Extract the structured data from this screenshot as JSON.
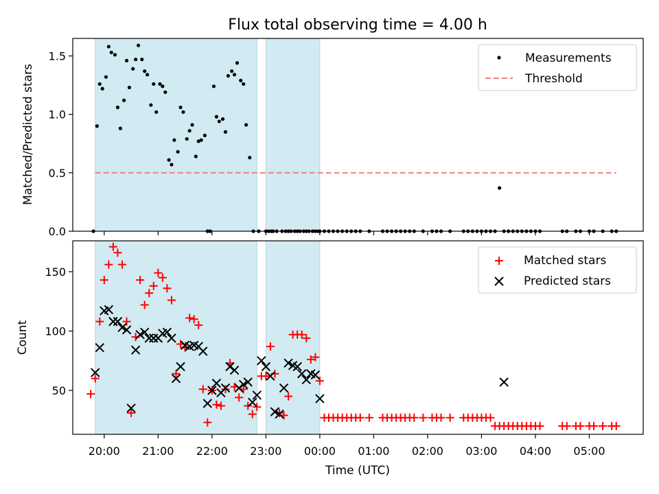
{
  "chart_data": [
    {
      "type": "scatter",
      "title": "Flux total observing time = 4.00 h",
      "ylabel": "Matched/Predicted stars",
      "xlabel": "",
      "ylim": [
        0,
        1.65
      ],
      "yticks": [
        0.0,
        0.5,
        1.0,
        1.5
      ],
      "ytick_labels": [
        "0.0",
        "0.5",
        "1.0",
        "1.5"
      ],
      "grid": false,
      "legend_position": "top-right",
      "legend": [
        "Measurements",
        "Threshold"
      ],
      "threshold": {
        "name": "Threshold",
        "value": 0.5,
        "x_range": [
          "19:50",
          "05:30"
        ]
      },
      "observing_windows": [
        [
          "19:50",
          "22:50"
        ],
        [
          "23:00",
          "00:00"
        ]
      ],
      "series": [
        {
          "name": "Measurements",
          "marker": "dot",
          "x": [
            "19:48",
            "19:52",
            "19:55",
            "19:58",
            "20:02",
            "20:05",
            "20:08",
            "20:12",
            "20:15",
            "20:18",
            "20:22",
            "20:25",
            "20:28",
            "20:32",
            "20:35",
            "20:38",
            "20:42",
            "20:45",
            "20:48",
            "20:52",
            "20:55",
            "20:58",
            "21:02",
            "21:05",
            "21:08",
            "21:12",
            "21:15",
            "21:18",
            "21:22",
            "21:25",
            "21:28",
            "21:32",
            "21:35",
            "21:38",
            "21:42",
            "21:45",
            "21:48",
            "21:52",
            "21:55",
            "21:58",
            "22:02",
            "22:05",
            "22:08",
            "22:12",
            "22:15",
            "22:18",
            "22:22",
            "22:25",
            "22:28",
            "22:32",
            "22:35",
            "22:38",
            "22:42",
            "22:46",
            "22:52",
            "23:00",
            "23:03",
            "23:06",
            "23:08",
            "23:12",
            "23:18",
            "23:22",
            "23:25",
            "23:28",
            "23:32",
            "23:35",
            "23:38",
            "23:42",
            "23:45",
            "23:48",
            "23:52",
            "23:55",
            "23:58",
            "00:00",
            "00:05",
            "00:10",
            "00:15",
            "00:20",
            "00:25",
            "00:30",
            "00:35",
            "00:40",
            "00:45",
            "00:55",
            "01:10",
            "01:15",
            "01:20",
            "01:25",
            "01:30",
            "01:35",
            "01:40",
            "01:45",
            "01:55",
            "02:05",
            "02:10",
            "02:15",
            "02:25",
            "02:40",
            "02:45",
            "02:50",
            "02:55",
            "03:00",
            "03:05",
            "03:10",
            "03:15",
            "03:20",
            "03:25",
            "03:30",
            "03:35",
            "03:40",
            "03:45",
            "03:50",
            "03:55",
            "04:00",
            "04:05",
            "04:30",
            "04:35",
            "04:45",
            "04:50",
            "05:00",
            "05:05",
            "05:15",
            "05:25",
            "05:30"
          ],
          "values": [
            0.0,
            0.9,
            1.26,
            1.22,
            1.32,
            1.58,
            1.53,
            1.51,
            1.06,
            0.88,
            1.12,
            1.46,
            1.23,
            1.39,
            1.47,
            1.59,
            1.47,
            1.37,
            1.34,
            1.08,
            1.26,
            1.02,
            1.26,
            1.24,
            1.19,
            0.61,
            0.57,
            0.78,
            0.68,
            1.06,
            1.02,
            0.79,
            0.86,
            0.91,
            0.64,
            0.77,
            0.78,
            0.82,
            0.0,
            0.0,
            1.24,
            0.98,
            0.94,
            0.96,
            0.85,
            1.33,
            1.37,
            1.34,
            1.44,
            1.29,
            1.26,
            0.91,
            0.63,
            0.0,
            0.0,
            0.0,
            0.0,
            0.0,
            0.0,
            0.0,
            0.0,
            0.0,
            0.0,
            0.0,
            0.0,
            0.0,
            0.0,
            0.0,
            0.0,
            0.0,
            0.0,
            0.0,
            0.0,
            0.0,
            0.0,
            0.0,
            0.0,
            0.0,
            0.0,
            0.0,
            0.0,
            0.0,
            0.0,
            0.0,
            0.0,
            0.0,
            0.0,
            0.0,
            0.0,
            0.0,
            0.0,
            0.0,
            0.0,
            0.0,
            0.0,
            0.0,
            0.0,
            0.0,
            0.0,
            0.0,
            0.0,
            0.0,
            0.0,
            0.0,
            0.0,
            0.37,
            0.0,
            0.0,
            0.0,
            0.0,
            0.0,
            0.0,
            0.0,
            0.0,
            0.0,
            0.0,
            0.0,
            0.0,
            0.0,
            0.0,
            0.0,
            0.0,
            0.0,
            0.0
          ]
        }
      ],
      "colors": {
        "measurements": "#000000",
        "threshold": "#f08080",
        "window": "#add8e6"
      }
    },
    {
      "type": "scatter",
      "title": "",
      "ylabel": "Count",
      "xlabel": "Time (UTC)",
      "ylim": [
        13,
        176
      ],
      "yticks": [
        50,
        100,
        150
      ],
      "ytick_labels": [
        "50",
        "100",
        "150"
      ],
      "xticks": [
        "20:00",
        "21:00",
        "22:00",
        "23:00",
        "00:00",
        "01:00",
        "02:00",
        "03:00",
        "04:00",
        "05:00"
      ],
      "xtick_labels": [
        "20:00",
        "21:00",
        "22:00",
        "23:00",
        "00:00",
        "01:00",
        "02:00",
        "03:00",
        "04:00",
        "05:00"
      ],
      "x_range": [
        "19:25",
        "06:00"
      ],
      "grid": false,
      "legend_position": "top-right",
      "legend": [
        "Matched stars",
        "Predicted stars"
      ],
      "observing_windows": [
        [
          "19:50",
          "22:50"
        ],
        [
          "23:00",
          "00:00"
        ]
      ],
      "series": [
        {
          "name": "Matched stars",
          "marker": "plus",
          "x": [
            "19:45",
            "19:50",
            "19:55",
            "20:00",
            "20:05",
            "20:10",
            "20:15",
            "20:20",
            "20:25",
            "20:30",
            "20:35",
            "20:40",
            "20:45",
            "20:50",
            "20:55",
            "21:00",
            "21:05",
            "21:10",
            "21:15",
            "21:20",
            "21:25",
            "21:30",
            "21:35",
            "21:40",
            "21:45",
            "21:50",
            "21:55",
            "22:00",
            "22:05",
            "22:10",
            "22:15",
            "22:20",
            "22:25",
            "22:30",
            "22:35",
            "22:40",
            "22:45",
            "22:50",
            "22:55",
            "23:00",
            "23:05",
            "23:10",
            "23:15",
            "23:20",
            "23:25",
            "23:30",
            "23:35",
            "23:40",
            "23:45",
            "23:50",
            "23:55",
            "00:00",
            "00:05",
            "00:10",
            "00:15",
            "00:20",
            "00:25",
            "00:30",
            "00:35",
            "00:40",
            "00:45",
            "00:55",
            "01:10",
            "01:15",
            "01:20",
            "01:25",
            "01:30",
            "01:35",
            "01:40",
            "01:45",
            "01:55",
            "02:05",
            "02:10",
            "02:15",
            "02:25",
            "02:40",
            "02:45",
            "02:50",
            "02:55",
            "03:00",
            "03:05",
            "03:10",
            "03:15",
            "03:20",
            "03:25",
            "03:30",
            "03:35",
            "03:40",
            "03:45",
            "03:50",
            "03:55",
            "04:00",
            "04:05",
            "04:30",
            "04:35",
            "04:45",
            "04:50",
            "05:00",
            "05:05",
            "05:15",
            "05:25",
            "05:30"
          ],
          "values": [
            47,
            60,
            108,
            143,
            156,
            171,
            166,
            156,
            108,
            31,
            95,
            143,
            122,
            132,
            138,
            149,
            145,
            136,
            126,
            64,
            89,
            86,
            111,
            110,
            105,
            51,
            23,
            50,
            38,
            37,
            51,
            73,
            53,
            44,
            51,
            37,
            30,
            36,
            62,
            62,
            87,
            64,
            31,
            29,
            45,
            97,
            97,
            97,
            94,
            76,
            78,
            58,
            27,
            27,
            27,
            27,
            27,
            27,
            27,
            27,
            27,
            27,
            27,
            27,
            27,
            27,
            27,
            27,
            27,
            27,
            27,
            27,
            27,
            27,
            27,
            27,
            27,
            27,
            27,
            27,
            27,
            27,
            20,
            20,
            20,
            20,
            20,
            20,
            20,
            20,
            20,
            20,
            20,
            20,
            20,
            20,
            20,
            20,
            20,
            20,
            20,
            20
          ]
        },
        {
          "name": "Predicted stars",
          "marker": "x",
          "x": [
            "19:50",
            "19:55",
            "20:00",
            "20:05",
            "20:10",
            "20:15",
            "20:20",
            "20:25",
            "20:30",
            "20:35",
            "20:40",
            "20:45",
            "20:50",
            "20:55",
            "21:00",
            "21:05",
            "21:10",
            "21:15",
            "21:20",
            "21:25",
            "21:30",
            "21:35",
            "21:40",
            "21:45",
            "21:50",
            "21:55",
            "22:00",
            "22:05",
            "22:10",
            "22:15",
            "22:20",
            "22:25",
            "22:30",
            "22:35",
            "22:40",
            "22:45",
            "22:50",
            "22:55",
            "23:00",
            "23:05",
            "23:10",
            "23:15",
            "23:20",
            "23:25",
            "23:30",
            "23:35",
            "23:40",
            "23:45",
            "23:50",
            "23:55",
            "00:00",
            "03:25"
          ],
          "values": [
            65,
            86,
            117,
            118,
            108,
            108,
            103,
            101,
            35,
            84,
            97,
            99,
            94,
            94,
            94,
            98,
            99,
            94,
            60,
            70,
            88,
            87,
            88,
            87,
            83,
            39,
            50,
            56,
            48,
            52,
            70,
            67,
            52,
            55,
            57,
            40,
            46,
            75,
            70,
            62,
            32,
            30,
            52,
            73,
            71,
            70,
            64,
            59,
            64,
            63,
            43,
            57
          ]
        }
      ],
      "colors": {
        "matched": "#ff0000",
        "predicted": "#000000",
        "window": "#add8e6"
      }
    }
  ]
}
